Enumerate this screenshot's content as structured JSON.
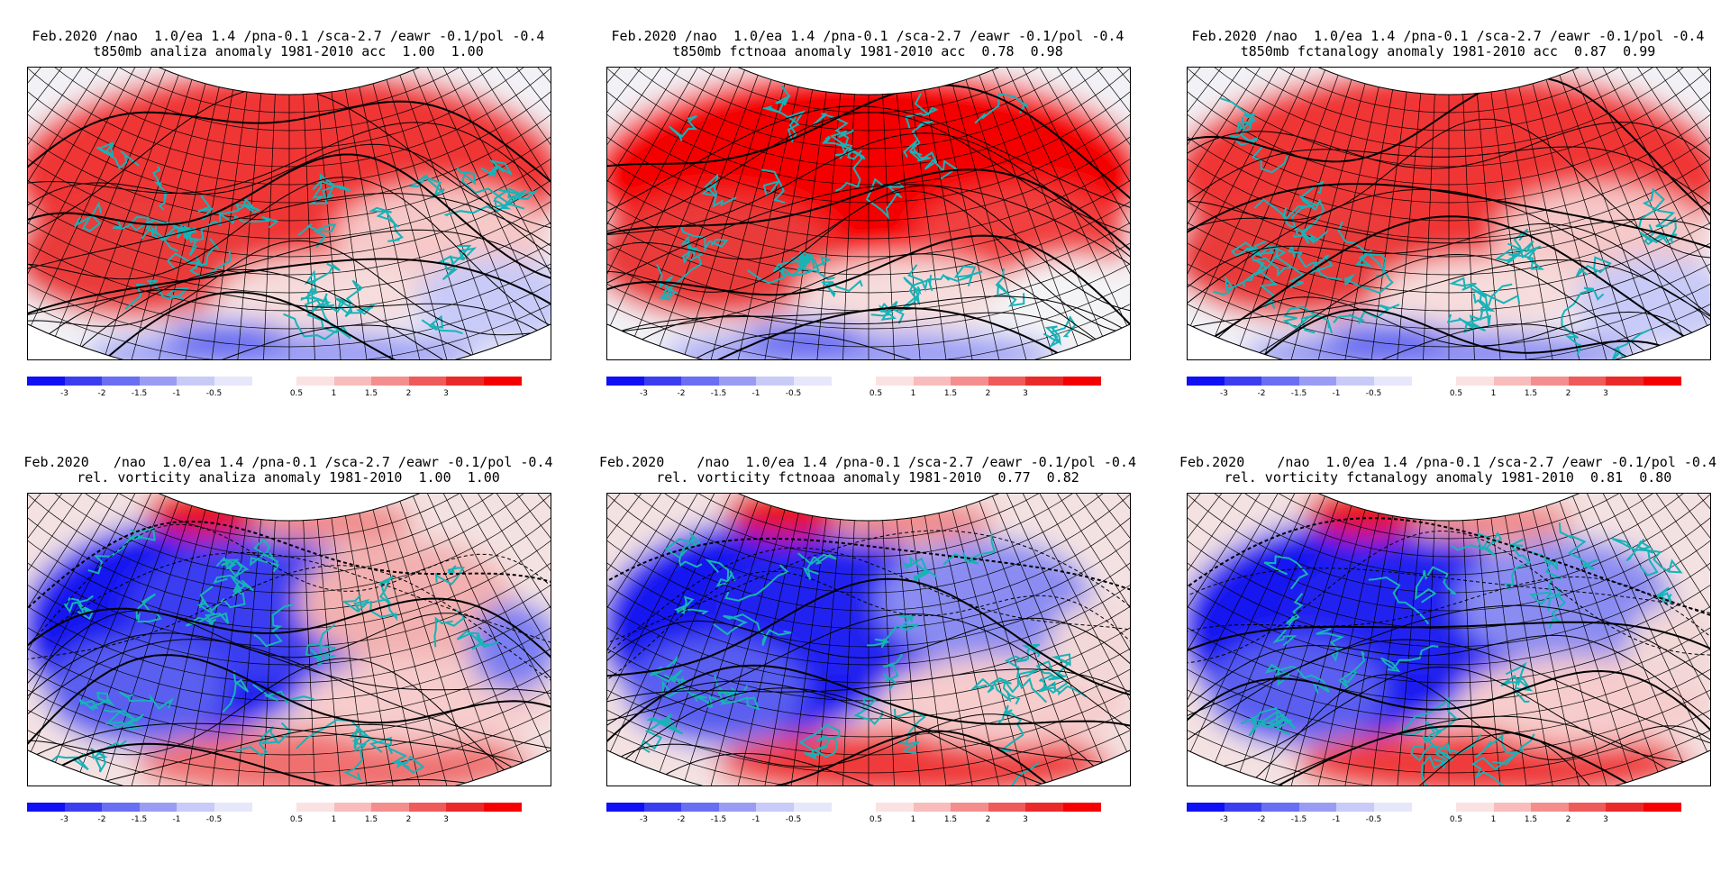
{
  "colorbar": {
    "neg_colors": [
      "#1010f5",
      "#3a3ef0",
      "#6a6ef2",
      "#9a9cf4",
      "#c8caf8",
      "#e6e7fb"
    ],
    "pos_colors": [
      "#fbe2e2",
      "#f8bcbc",
      "#f48e8e",
      "#ef5a5a",
      "#ea2a2a",
      "#f40000"
    ],
    "neg_labels": [
      "-3",
      "-2",
      "-1.5",
      "-1",
      "-0.5"
    ],
    "pos_labels": [
      "0.5",
      "1",
      "1.5",
      "2",
      "3"
    ]
  },
  "panels": [
    {
      "line1": "Feb.2020 /nao  1.0/ea 1.4 /pna-0.1 /sca-2.7 /eawr -0.1/pol -0.4",
      "line2": "t850mb analiza anomaly 1981-2010 acc  1.00  1.00",
      "map": {
        "variable": "t850mb",
        "source": "analiza",
        "dominant": "warm"
      }
    },
    {
      "line1": "Feb.2020 /nao  1.0/ea 1.4 /pna-0.1 /sca-2.7 /eawr -0.1/pol -0.4",
      "line2": "t850mb fctnoaa anomaly 1981-2010 acc  0.78  0.98",
      "map": {
        "variable": "t850mb",
        "source": "fctnoaa",
        "dominant": "warm"
      }
    },
    {
      "line1": "Feb.2020 /nao  1.0/ea 1.4 /pna-0.1 /sca-2.7 /eawr -0.1/pol -0.4",
      "line2": "t850mb fctanalogy anomaly 1981-2010 acc  0.87  0.99",
      "map": {
        "variable": "t850mb",
        "source": "fctanalogy",
        "dominant": "warm"
      }
    },
    {
      "line1": "Feb.2020   /nao  1.0/ea 1.4 /pna-0.1 /sca-2.7 /eawr -0.1/pol -0.4",
      "line2": "rel. vorticity analiza anomaly 1981-2010  1.00  1.00",
      "map": {
        "variable": "rel. vorticity",
        "source": "analiza",
        "dominant": "cyclonic"
      }
    },
    {
      "line1": "Feb.2020    /nao  1.0/ea 1.4 /pna-0.1 /sca-2.7 /eawr -0.1/pol -0.4",
      "line2": "rel. vorticity fctnoaa anomaly 1981-2010  0.77  0.82",
      "map": {
        "variable": "rel. vorticity",
        "source": "fctnoaa",
        "dominant": "cyclonic"
      }
    },
    {
      "line1": "Feb.2020    /nao  1.0/ea 1.4 /pna-0.1 /sca-2.7 /eawr -0.1/pol -0.4",
      "line2": "rel. vorticity fctanalogy anomaly 1981-2010  0.81  0.80",
      "map": {
        "variable": "rel. vorticity",
        "source": "fctanalogy",
        "dominant": "cyclonic"
      }
    }
  ]
}
